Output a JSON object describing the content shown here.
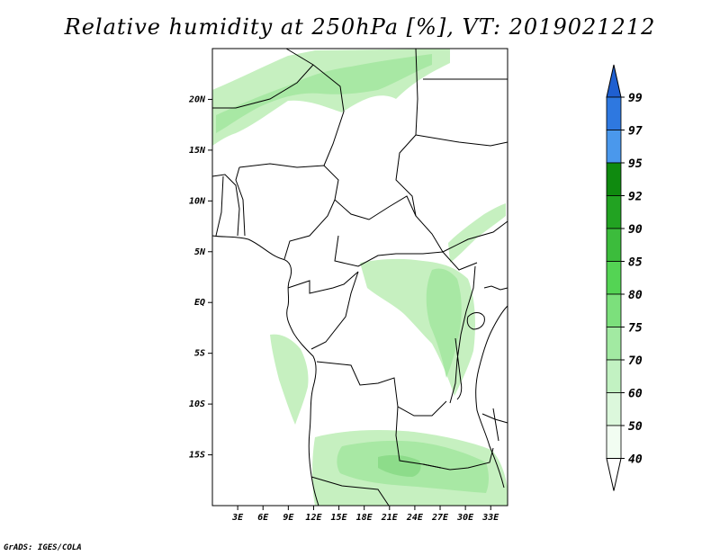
{
  "title": "Relative humidity at 250hPa [%], VT: 2019021212",
  "footer": "GrADS: IGES/COLA",
  "map": {
    "lon_range": [
      0,
      35
    ],
    "lat_range": [
      -20,
      25
    ],
    "lat_ticks": [
      "20N",
      "15N",
      "10N",
      "5N",
      "EQ",
      "5S",
      "10S",
      "15S"
    ],
    "lat_values": [
      20,
      15,
      10,
      5,
      0,
      -5,
      -10,
      -15
    ],
    "lon_ticks": [
      "3E",
      "6E",
      "9E",
      "12E",
      "15E",
      "18E",
      "21E",
      "24E",
      "27E",
      "30E",
      "33E"
    ],
    "lon_values": [
      3,
      6,
      9,
      12,
      15,
      18,
      21,
      24,
      27,
      30,
      33
    ]
  },
  "colorbar": {
    "levels": [
      "99",
      "97",
      "95",
      "92",
      "90",
      "85",
      "80",
      "75",
      "70",
      "60",
      "50",
      "40"
    ],
    "colors": [
      "#1f5fd0",
      "#2e78e0",
      "#4a98ec",
      "#0f8a0f",
      "#22a322",
      "#3cbc3c",
      "#54d454",
      "#7ce07c",
      "#a2eaa2",
      "#c2f2c2",
      "#dcf8dc",
      "#f2fdf2"
    ],
    "top_color": "#1f5fd0",
    "bottom_color": "#ffffff"
  },
  "colors": {
    "humid_light": "#c6f0c0",
    "humid_mid": "#a8e8a4",
    "humid_dark": "#8ddc8a"
  }
}
